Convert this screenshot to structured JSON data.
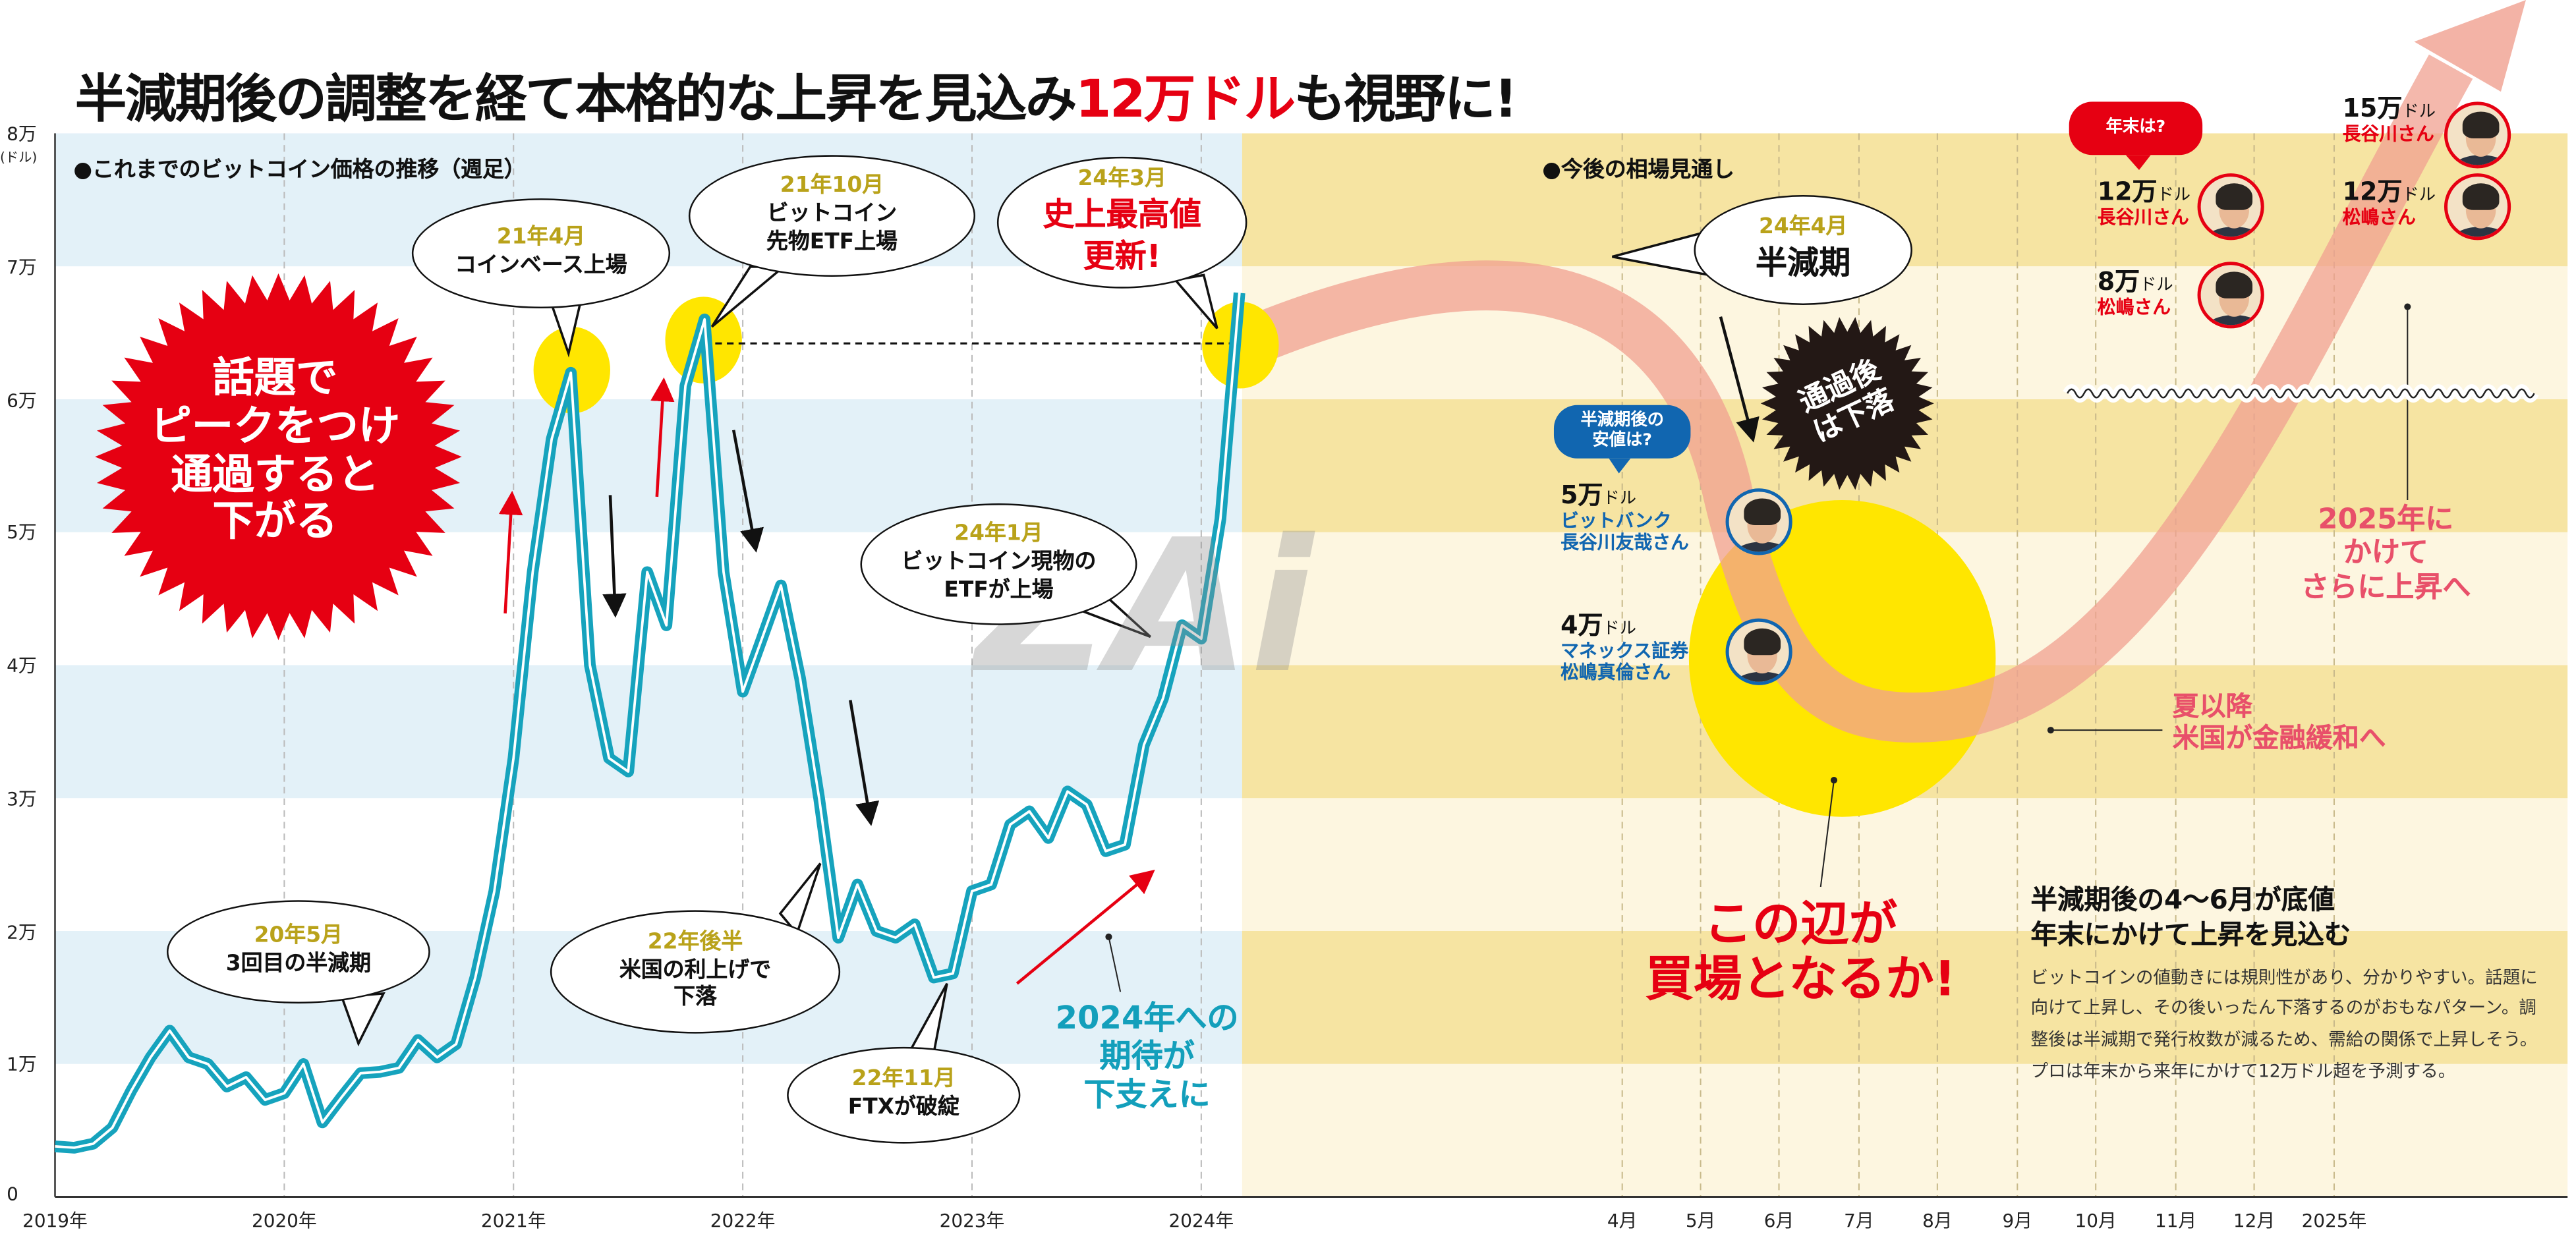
{
  "title": {
    "prefix": "半減期後の調整を経て本格的な上昇を見込み",
    "highlight": "12万ドル",
    "suffix": "も視野に!"
  },
  "colors": {
    "price_line": "#16a3bd",
    "accent_red": "#e60012",
    "forecast_band": "#f0a090",
    "highlight_yellow": "#ffe600",
    "past_band": "#e3f1f8",
    "future_band_dark": "#f6e4a2",
    "future_band_light": "#fdf6e0",
    "gold_text": "#b9a21a",
    "blue_text": "#1166b0",
    "pink_text": "#e8506a"
  },
  "sections": {
    "past": "●これまでのビットコイン価格の推移（週足）",
    "future": "●今後の相場見通し"
  },
  "chart_data": {
    "type": "line",
    "title": "",
    "ylabel_unit": "(ドル)",
    "y_ticks": [
      "0",
      "1万",
      "2万",
      "3万",
      "4万",
      "5万",
      "6万",
      "7万",
      "8万"
    ],
    "ylim": [
      0,
      80000
    ],
    "x_ticks_past": [
      "2019年",
      "2020年",
      "2021年",
      "2022年",
      "2023年",
      "2024年"
    ],
    "x_ticks_future": [
      "4月",
      "5月",
      "6月",
      "7月",
      "8月",
      "9月",
      "10月",
      "11月",
      "12月",
      "2025年"
    ],
    "grid": "vertical dashed",
    "price_series": [
      [
        "2019-01",
        3800
      ],
      [
        "2019-02",
        3700
      ],
      [
        "2019-03",
        4000
      ],
      [
        "2019-04",
        5200
      ],
      [
        "2019-05",
        8000
      ],
      [
        "2019-06",
        10500
      ],
      [
        "2019-07",
        12500
      ],
      [
        "2019-08",
        10500
      ],
      [
        "2019-09",
        10000
      ],
      [
        "2019-10",
        8300
      ],
      [
        "2019-11",
        9000
      ],
      [
        "2019-12",
        7300
      ],
      [
        "2020-01",
        7800
      ],
      [
        "2020-02",
        10000
      ],
      [
        "2020-03",
        5600
      ],
      [
        "2020-04",
        7500
      ],
      [
        "2020-05",
        9300
      ],
      [
        "2020-06",
        9400
      ],
      [
        "2020-07",
        9700
      ],
      [
        "2020-08",
        11800
      ],
      [
        "2020-09",
        10500
      ],
      [
        "2020-10",
        11500
      ],
      [
        "2020-11",
        16500
      ],
      [
        "2020-12",
        23000
      ],
      [
        "2021-01",
        33000
      ],
      [
        "2021-02",
        47000
      ],
      [
        "2021-03",
        57000
      ],
      [
        "2021-04",
        62000
      ],
      [
        "2021-05",
        40000
      ],
      [
        "2021-06",
        33000
      ],
      [
        "2021-07",
        32000
      ],
      [
        "2021-08",
        47000
      ],
      [
        "2021-09",
        43000
      ],
      [
        "2021-10",
        61000
      ],
      [
        "2021-11",
        66000
      ],
      [
        "2021-12",
        47000
      ],
      [
        "2022-01",
        38000
      ],
      [
        "2022-02",
        42000
      ],
      [
        "2022-03",
        46000
      ],
      [
        "2022-04",
        39000
      ],
      [
        "2022-05",
        30000
      ],
      [
        "2022-06",
        19500
      ],
      [
        "2022-07",
        23500
      ],
      [
        "2022-08",
        20000
      ],
      [
        "2022-09",
        19500
      ],
      [
        "2022-10",
        20500
      ],
      [
        "2022-11",
        16500
      ],
      [
        "2022-12",
        16800
      ],
      [
        "2023-01",
        23000
      ],
      [
        "2023-02",
        23500
      ],
      [
        "2023-03",
        28000
      ],
      [
        "2023-04",
        29000
      ],
      [
        "2023-05",
        27000
      ],
      [
        "2023-06",
        30500
      ],
      [
        "2023-07",
        29500
      ],
      [
        "2023-08",
        26000
      ],
      [
        "2023-09",
        26500
      ],
      [
        "2023-10",
        34000
      ],
      [
        "2023-11",
        37500
      ],
      [
        "2023-12",
        43000
      ],
      [
        "2024-01",
        42000
      ],
      [
        "2024-02",
        51000
      ],
      [
        "2024-03",
        68000
      ]
    ]
  },
  "callouts": {
    "c2005": {
      "date": "20年5月",
      "text": "3回目の半減期"
    },
    "c2104": {
      "date": "21年4月",
      "text": "コインベース上場"
    },
    "c2110": {
      "date": "21年10月",
      "line1": "ビットコイン",
      "line2": "先物ETF上場"
    },
    "c2403": {
      "date": "24年3月",
      "line1": "史上最高値",
      "line2": "更新!"
    },
    "c2401": {
      "date": "24年1月",
      "line1": "ビットコイン現物の",
      "line2": "ETFが上場"
    },
    "c22h2": {
      "date": "22年後半",
      "line1": "米国の利上げで",
      "line2": "下落"
    },
    "c2211": {
      "date": "22年11月",
      "text": "FTXが破綻"
    },
    "c2404": {
      "date": "24年4月",
      "text": "半減期"
    }
  },
  "burst_red": {
    "lines": [
      "話題で",
      "ピークをつけ",
      "通過すると",
      "下がる"
    ]
  },
  "burst_black": {
    "lines": [
      "通過後",
      "は下落"
    ]
  },
  "support_note": {
    "lines": [
      "2024年への",
      "期待が",
      "下支えに"
    ]
  },
  "low_question": {
    "lines": [
      "半減期後の",
      "安値は?"
    ]
  },
  "year_end_question": "年末は?",
  "predictions": {
    "low1": {
      "value": "5万",
      "unit": "ドル",
      "org": "ビットバンク",
      "name": "長谷川友哉さん"
    },
    "low2": {
      "value": "4万",
      "unit": "ドル",
      "org": "マネックス証券",
      "name": "松嶋真倫さん"
    },
    "ye1": {
      "value": "12万",
      "unit": "ドル",
      "name": "長谷川さん"
    },
    "ye2": {
      "value": "8万",
      "unit": "ドル",
      "name": "松嶋さん"
    },
    "y25a": {
      "value": "15万",
      "unit": "ドル",
      "name": "長谷川さん"
    },
    "y25b": {
      "value": "12万",
      "unit": "ドル",
      "name": "松嶋さん"
    }
  },
  "note_2025": {
    "lines": [
      "2025年に",
      "かけて",
      "さらに上昇へ"
    ]
  },
  "note_summer": {
    "lines": [
      "夏以降",
      "米国が金融緩和へ"
    ]
  },
  "buy_zone": {
    "lines": [
      "この辺が",
      "買場となるか!"
    ]
  },
  "summary": {
    "heading1": "半減期後の4～6月が底値",
    "heading2": "年末にかけて上昇を見込む",
    "body": "ビットコインの値動きには規則性があり、分かりやすい。話題に向けて上昇し、その後いったん下落するのがおもなパターン。調整後は半減期で発行枚数が減るため、需給の関係で上昇しそう。プロは年末から来年にかけて12万ドル超を予測する。"
  },
  "watermark": "ZAi"
}
